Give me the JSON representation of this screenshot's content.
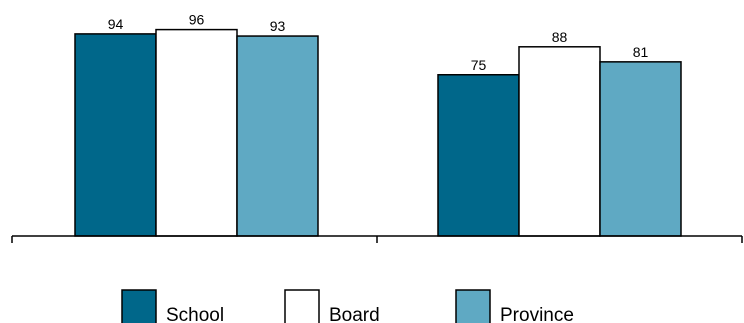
{
  "chart_data": {
    "type": "bar",
    "categories": [
      "",
      ""
    ],
    "series": [
      {
        "name": "School",
        "values": [
          94,
          75
        ],
        "color": "#00678a"
      },
      {
        "name": "Board",
        "values": [
          96,
          88
        ],
        "color": "#ffffff"
      },
      {
        "name": "Province",
        "values": [
          93,
          81
        ],
        "color": "#5fa9c3"
      }
    ],
    "ylim": [
      0,
      100
    ],
    "grid": false,
    "legend_position": "bottom",
    "data_labels": true
  }
}
